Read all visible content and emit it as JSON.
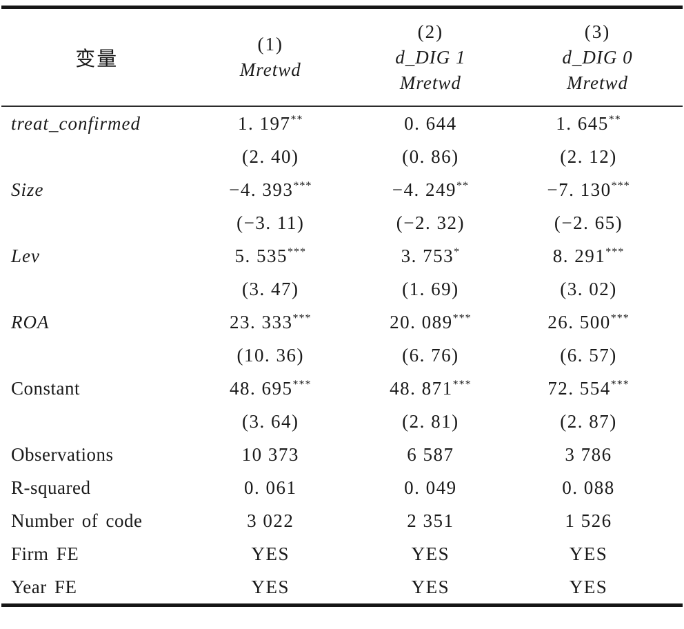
{
  "table": {
    "header": {
      "variable_label": "变量",
      "columns": [
        {
          "num": "(1)",
          "group": "",
          "dep": "Mretwd"
        },
        {
          "num": "(2)",
          "group": "d_DIG 1",
          "dep": "Mretwd"
        },
        {
          "num": "(3)",
          "group": "d_DIG 0",
          "dep": "Mretwd"
        }
      ]
    },
    "rows": [
      {
        "label": "treat_confirmed",
        "c": [
          {
            "t": "1. 197",
            "s": "**"
          },
          {
            "t": "0. 644",
            "s": ""
          },
          {
            "t": "1. 645",
            "s": "**"
          }
        ]
      },
      {
        "label": "",
        "c": [
          {
            "t": "(2. 40)"
          },
          {
            "t": "(0. 86)"
          },
          {
            "t": "(2. 12)"
          }
        ]
      },
      {
        "label": "Size",
        "c": [
          {
            "t": "−4. 393",
            "s": "***"
          },
          {
            "t": "−4. 249",
            "s": "**"
          },
          {
            "t": "−7. 130",
            "s": "***"
          }
        ]
      },
      {
        "label": "",
        "c": [
          {
            "t": "(−3. 11)"
          },
          {
            "t": "(−2. 32)"
          },
          {
            "t": "(−2. 65)"
          }
        ]
      },
      {
        "label": "Lev",
        "c": [
          {
            "t": "5. 535",
            "s": "***"
          },
          {
            "t": "3. 753",
            "s": "*"
          },
          {
            "t": "8. 291",
            "s": "***"
          }
        ]
      },
      {
        "label": "",
        "c": [
          {
            "t": "(3. 47)"
          },
          {
            "t": "(1. 69)"
          },
          {
            "t": "(3. 02)"
          }
        ]
      },
      {
        "label": "ROA",
        "c": [
          {
            "t": "23. 333",
            "s": "***"
          },
          {
            "t": "20. 089",
            "s": "***"
          },
          {
            "t": "26. 500",
            "s": "***"
          }
        ]
      },
      {
        "label": "",
        "c": [
          {
            "t": "(10. 36)"
          },
          {
            "t": "(6. 76)"
          },
          {
            "t": "(6. 57)"
          }
        ]
      },
      {
        "label": "Constant",
        "c": [
          {
            "t": "48. 695",
            "s": "***"
          },
          {
            "t": "48. 871",
            "s": "***"
          },
          {
            "t": "72. 554",
            "s": "***"
          }
        ]
      },
      {
        "label": "",
        "c": [
          {
            "t": "(3. 64)"
          },
          {
            "t": "(2. 81)"
          },
          {
            "t": "(2. 87)"
          }
        ]
      },
      {
        "label": "Observations",
        "c": [
          {
            "t": "10 373"
          },
          {
            "t": "6 587"
          },
          {
            "t": "3 786"
          }
        ]
      },
      {
        "label": "R-squared",
        "c": [
          {
            "t": "0. 061"
          },
          {
            "t": "0. 049"
          },
          {
            "t": "0. 088"
          }
        ]
      },
      {
        "label": "Number of code",
        "c": [
          {
            "t": "3 022"
          },
          {
            "t": "2 351"
          },
          {
            "t": "1 526"
          }
        ]
      },
      {
        "label": "Firm FE",
        "c": [
          {
            "t": "YES"
          },
          {
            "t": "YES"
          },
          {
            "t": "YES"
          }
        ]
      },
      {
        "label": "Year FE",
        "c": [
          {
            "t": "YES"
          },
          {
            "t": "YES"
          },
          {
            "t": "YES"
          }
        ]
      }
    ]
  }
}
